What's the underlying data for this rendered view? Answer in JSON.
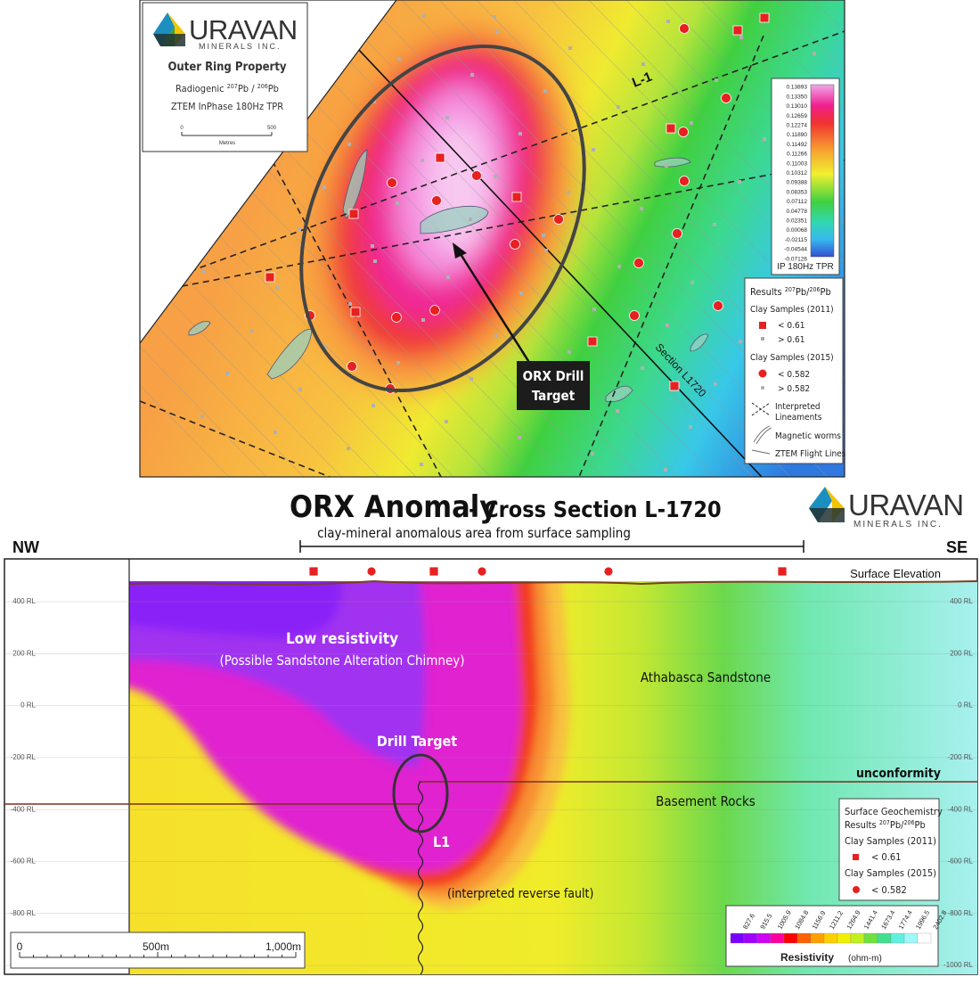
{
  "map": {
    "logo": {
      "name": "URAVAN",
      "subtitle": "MINERALS INC."
    },
    "title": "Outer Ring Property",
    "subtitle_parts": [
      "Radiogenic ",
      "207",
      "Pb / ",
      "206",
      "Pb"
    ],
    "layer": "ZTEM InPhase 180Hz TPR",
    "scale": {
      "start": "0",
      "end": "500",
      "unit": "Metres"
    },
    "labels": {
      "line": "L-1",
      "section": "Section L1720",
      "target": [
        "ORX Drill",
        "Target"
      ]
    },
    "colorbar": {
      "values": [
        "0.13893",
        "0.13350",
        "0.13010",
        "0.12659",
        "0.12274",
        "0.11890",
        "0.11492",
        "0.11266",
        "0.11003",
        "0.10312",
        "0.09388",
        "0.08353",
        "0.07112",
        "0.04778",
        "0.02351",
        "0.00068",
        "-0.02115",
        "-0.04544",
        "-0.07126"
      ],
      "title": "IP 180Hz TPR"
    },
    "legend": {
      "title_parts": [
        "Results ",
        "207",
        "Pb/",
        "206",
        "Pb"
      ],
      "group_2011": "Clay Samples (2011)",
      "low_2011": "< 0.61",
      "high_2011": "> 0.61",
      "group_2015": "Clay Samples (2015)",
      "low_2015": "< 0.582",
      "high_2015": "> 0.582",
      "lineaments": [
        "Interpreted",
        "Lineaments"
      ],
      "worms": "Magnetic worms",
      "flight": "ZTEM Flight Lines"
    }
  },
  "section": {
    "title": "ORX Anomaly",
    "subtitle": "- Cross Section L-1720",
    "logo": {
      "name": "URAVAN",
      "subtitle": "MINERALS INC."
    },
    "bracket": "clay-mineral anomalous area from surface sampling",
    "nw": "NW",
    "se": "SE",
    "surface": "Surface Elevation",
    "left_ticks": [
      "400 RL",
      "200 RL",
      "0 RL",
      "-200 RL",
      "-400 RL",
      "-600 RL",
      "-800 RL"
    ],
    "right_ticks": [
      "400 RL",
      "200 RL",
      "0 RL",
      "-200 RL",
      "-400 RL",
      "-600 RL",
      "-800 RL",
      "-1000 RL"
    ],
    "annotations": {
      "low": "Low resistivity",
      "chimney": "(Possible Sandstone Alteration Chimney)",
      "sandstone": "Athabasca Sandstone",
      "target": "Drill Target",
      "unconformity": "unconformity",
      "basement": "Basement Rocks",
      "l1": "L1",
      "fault": "(interpreted reverse fault)"
    },
    "legend": {
      "head": "Surface Geochemistry",
      "title_parts": [
        "Results ",
        "207",
        "Pb/",
        "206",
        "Pb"
      ],
      "group_2011": "Clay Samples (2011)",
      "low_2011": "< 0.61",
      "group_2015": "Clay Samples (2015)",
      "low_2015": "< 0.582"
    },
    "scale": [
      "0",
      "500m",
      "1,000m"
    ],
    "colorbar": {
      "values": [
        "827.6",
        "915.5",
        "1005.9",
        "1084.8",
        "1156.9",
        "1211.2",
        "1264.9",
        "1441.4",
        "1673.4",
        "1774.4",
        "1996.5",
        "2402.8"
      ],
      "title": "Resistivity",
      "unit": "(ohm-m)"
    }
  }
}
